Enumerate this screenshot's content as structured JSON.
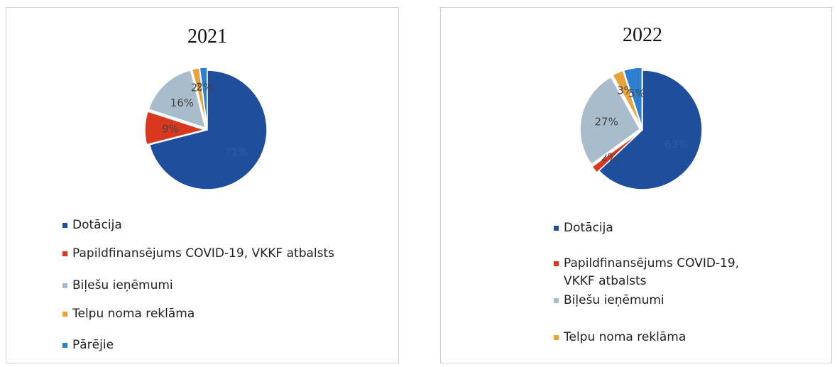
{
  "chart_data": [
    {
      "type": "pie",
      "title": "2021",
      "categories": [
        "Dotācija",
        "Papildfinansējums COVID-19, VKKF atbalsts",
        "Biļešu ieņēmumi",
        "Telpu noma reklāma",
        "Pārējie"
      ],
      "values": [
        71,
        9,
        16,
        2,
        2
      ],
      "value_labels": [
        "71%",
        "9%",
        "16%",
        "2%",
        "2%"
      ],
      "colors": [
        "#1f4e9c",
        "#d9381e",
        "#a9bccb",
        "#e8a33d",
        "#2f7fd0"
      ]
    },
    {
      "type": "pie",
      "title": "2022",
      "categories": [
        "Dotācija",
        "Papildfinansējums COVID-19, VKKF atbalsts",
        "Biļešu ieņēmumi",
        "Telpu noma reklāma",
        null
      ],
      "values": [
        63,
        2,
        27,
        3,
        5
      ],
      "value_labels": [
        "63%",
        "2%",
        "27%",
        "3%",
        "5%"
      ],
      "colors": [
        "#1f4e9c",
        "#d9381e",
        "#a9bccb",
        "#e8a33d",
        "#2f7fd0"
      ]
    }
  ]
}
